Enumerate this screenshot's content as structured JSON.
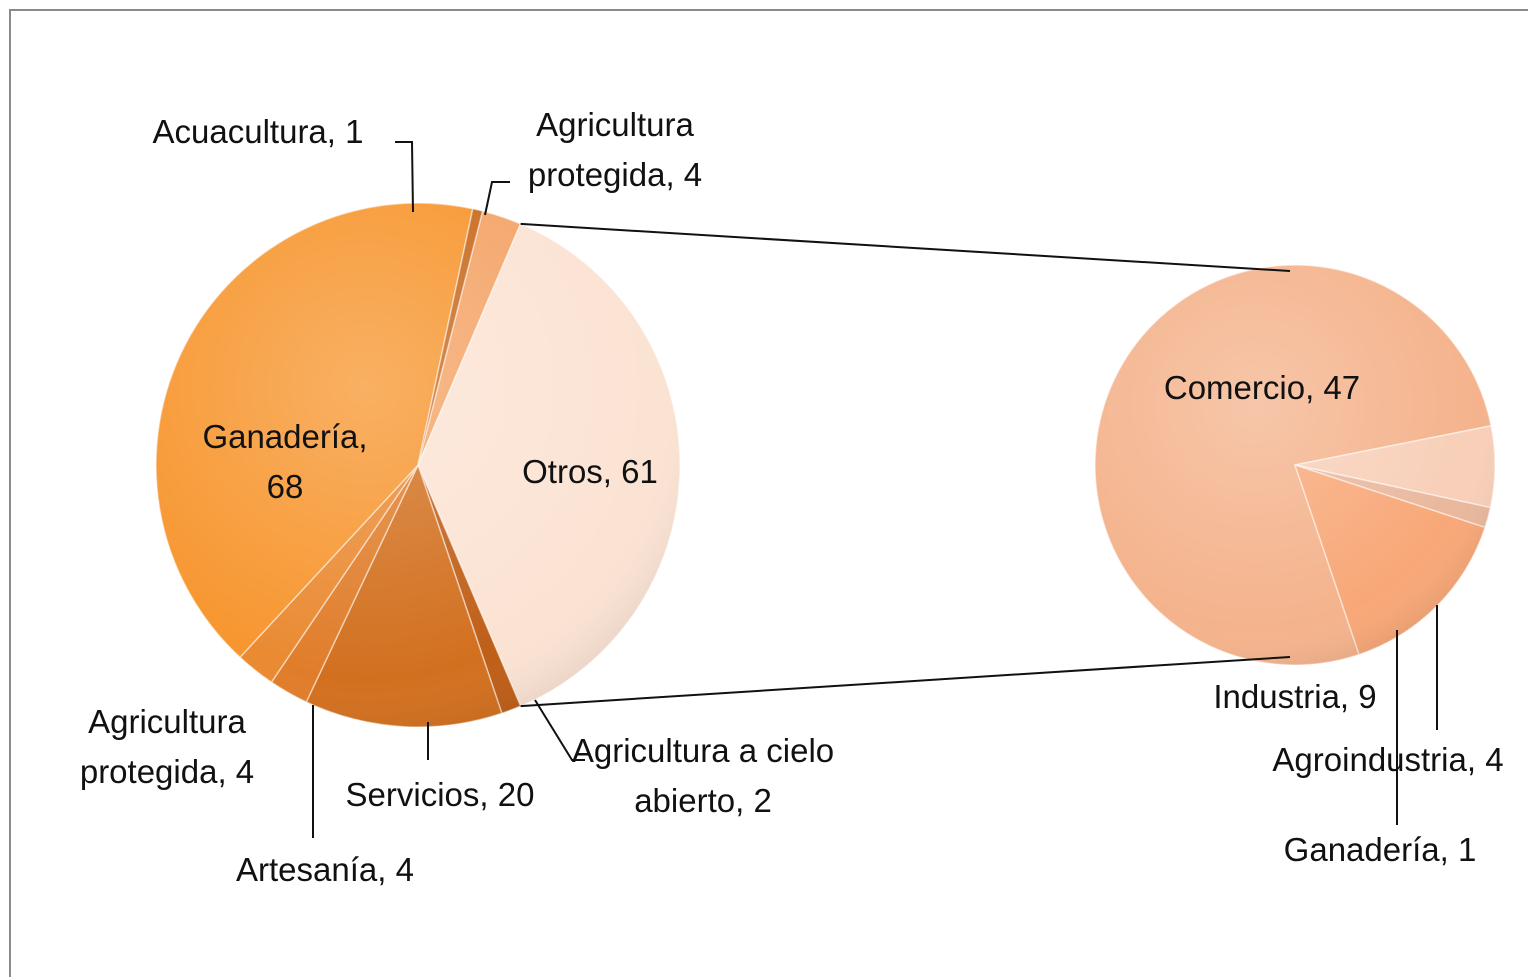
{
  "chart_data": {
    "type": "pie-of-pie",
    "pies": [
      {
        "values": [
          4,
          61,
          2,
          20,
          4,
          4,
          68,
          1
        ],
        "value_labels": [
          "Agricultura protegida, 4",
          "Otros, 61",
          "Agricultura a cielo abierto, 2",
          "Servicios, 20",
          "Artesanía, 4",
          "Agricultura protegida, 4",
          "Ganadería, 68",
          "Acuacultura, 1"
        ],
        "colors": [
          "#f4a467",
          "#fbe3d3",
          "#bf5f18",
          "#d2701f",
          "#e07d2a",
          "#ea8a32",
          "#f7962f",
          "#c86a1e"
        ]
      },
      {
        "values": [
          47,
          4,
          1,
          9
        ],
        "value_labels": [
          "Comercio, 47",
          "Agroindustria, 4",
          "Ganadería, 1",
          "Industria, 9"
        ],
        "colors": [
          "#f4b38c",
          "#f8cfb8",
          "#e9b89d",
          "#f8a878"
        ]
      }
    ]
  }
}
